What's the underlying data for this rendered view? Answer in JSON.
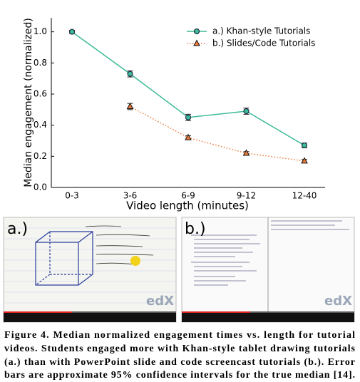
{
  "chart_data": {
    "type": "line",
    "xlabel": "Video length (minutes)",
    "ylabel": "Median engagement (normalized)",
    "categories": [
      "0-3",
      "3-6",
      "6-9",
      "9-12",
      "12-40"
    ],
    "series": [
      {
        "name": "a.) Khan-style Tutorials",
        "color": "#3dba98",
        "line_style": "solid",
        "marker": "circle",
        "values": [
          1.0,
          0.73,
          0.45,
          0.49,
          0.27
        ],
        "errors": [
          0.01,
          0.02,
          0.02,
          0.02,
          0.015
        ]
      },
      {
        "name": "b.) Slides/Code Tutorials",
        "color": "#ec7b3c",
        "line_style": "dotted",
        "marker": "triangle",
        "values": [
          null,
          0.52,
          0.32,
          0.22,
          0.17
        ],
        "errors": [
          null,
          0.02,
          0.012,
          0.01,
          0.01
        ]
      }
    ],
    "ylim": [
      0,
      1.09
    ],
    "yticks": [
      {
        "value": 0,
        "label": "0.0"
      },
      0.2,
      0.4,
      0.6,
      0.8,
      {
        "value": 1,
        "label": "1.0"
      }
    ],
    "legend": "upper right"
  },
  "figure": {
    "panels": [
      {
        "label": "a.)",
        "logo": "edX"
      },
      {
        "label": "b.)",
        "logo": "edX"
      }
    ],
    "caption": {
      "lines": [
        "Figure 4. Median normalized engagement times vs. length for tutorial",
        "videos. Students engaged more with Khan-style tablet drawing tutorials",
        "(a.) than with PowerPoint slide and code screencast tutorials (b.). Error",
        "bars are approximate 95% confidence intervals for the true median [14]."
      ]
    }
  }
}
